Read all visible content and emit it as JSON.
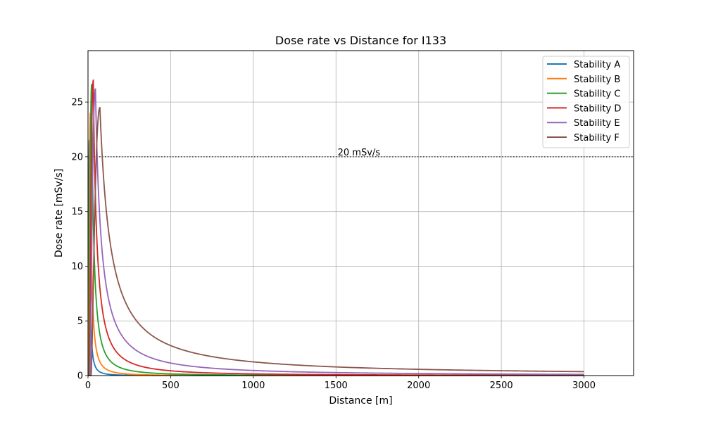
{
  "chart_data": {
    "type": "line",
    "title": "Dose rate vs Distance for I133",
    "xlabel": "Distance [m]",
    "ylabel": "Dose rate [mSv/s]",
    "xlim": [
      0,
      3300
    ],
    "ylim": [
      0,
      29.7
    ],
    "xticks": [
      0,
      500,
      1000,
      1500,
      2000,
      2500,
      3000
    ],
    "yticks": [
      0,
      5,
      10,
      15,
      20,
      25
    ],
    "xtick_labels": [
      "0",
      "500",
      "1000",
      "1500",
      "2000",
      "2500",
      "3000"
    ],
    "ytick_labels": [
      "0",
      "5",
      "10",
      "15",
      "20",
      "25"
    ],
    "grid": true,
    "legend_position": "top-right",
    "reference_line": {
      "y": 20,
      "style": "dotted",
      "color": "#444444",
      "label": "20 mSv/s",
      "label_x": 1510
    },
    "series": [
      {
        "name": "Stability A",
        "color": "#1f77b4",
        "peak_x": 8,
        "peak_y": 21.5,
        "decay_exponent": 1.9,
        "x": [
          2,
          5,
          8,
          20,
          50,
          100,
          200,
          500,
          1000,
          2000,
          3000
        ],
        "y": [
          0,
          16,
          21.5,
          13.5,
          3.5,
          1.1,
          0.3,
          0.05,
          0.02,
          0.01,
          0.01
        ]
      },
      {
        "name": "Stability B",
        "color": "#ff7f0e",
        "peak_x": 14,
        "peak_y": 24.0,
        "decay_exponent": 1.8,
        "x": [
          4,
          8,
          14,
          30,
          50,
          100,
          200,
          500,
          1000,
          2000,
          3000
        ],
        "y": [
          0,
          17,
          24.0,
          15.5,
          6.5,
          1.8,
          0.5,
          0.1,
          0.03,
          0.01,
          0.01
        ]
      },
      {
        "name": "Stability C",
        "color": "#2ca02c",
        "peak_x": 22,
        "peak_y": 26.6,
        "decay_exponent": 1.65,
        "x": [
          6,
          12,
          22,
          40,
          60,
          100,
          200,
          500,
          1000,
          2000,
          3000
        ],
        "y": [
          0,
          17,
          26.6,
          15.0,
          7.5,
          3.3,
          1.0,
          0.25,
          0.08,
          0.03,
          0.02
        ]
      },
      {
        "name": "Stability D",
        "color": "#d62728",
        "peak_x": 32,
        "peak_y": 27.0,
        "decay_exponent": 1.5,
        "x": [
          9,
          18,
          32,
          50,
          100,
          150,
          200,
          500,
          1000,
          2000,
          3000
        ],
        "y": [
          0,
          17,
          27.0,
          16.5,
          5.3,
          2.9,
          1.9,
          0.45,
          0.16,
          0.06,
          0.03
        ]
      },
      {
        "name": "Stability E",
        "color": "#9467bd",
        "peak_x": 45,
        "peak_y": 26.2,
        "decay_exponent": 1.3,
        "x": [
          12,
          25,
          45,
          100,
          150,
          200,
          300,
          500,
          1000,
          2000,
          3000
        ],
        "y": [
          0,
          17,
          26.2,
          9.6,
          5.6,
          3.9,
          2.3,
          1.1,
          0.45,
          0.19,
          0.12
        ]
      },
      {
        "name": "Stability F",
        "color": "#8c564b",
        "peak_x": 72,
        "peak_y": 24.5,
        "decay_exponent": 1.13,
        "x": [
          18,
          40,
          72,
          150,
          200,
          300,
          500,
          1000,
          1500,
          2000,
          3000
        ],
        "y": [
          0,
          16,
          24.5,
          11.1,
          7.4,
          4.5,
          2.2,
          0.85,
          0.48,
          0.33,
          0.18
        ]
      }
    ]
  }
}
